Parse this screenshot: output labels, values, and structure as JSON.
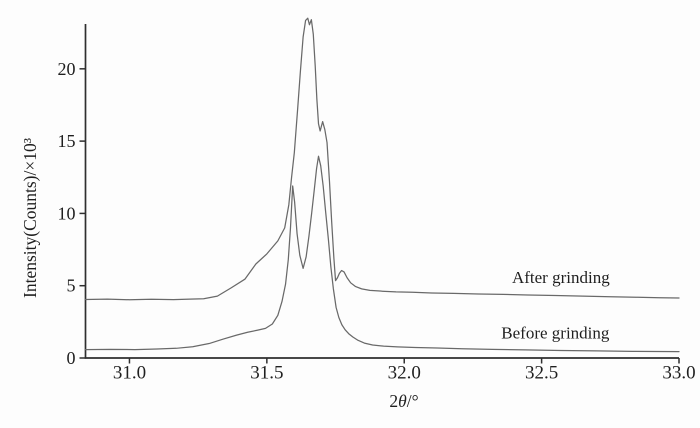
{
  "chart_data": {
    "type": "line",
    "title": "",
    "xlabel": "2θ/°",
    "ylabel": "Intensity(Counts)/×10³",
    "xlim": [
      30.84,
      33.0
    ],
    "ylim": [
      0,
      23.1
    ],
    "grid": false,
    "legend_position": "in-plot text labels",
    "x_ticks": [
      {
        "v": 31.0,
        "label": "31.0"
      },
      {
        "v": 31.5,
        "label": "31.5"
      },
      {
        "v": 32.0,
        "label": "32.0"
      },
      {
        "v": 32.5,
        "label": "32.5"
      },
      {
        "v": 33.0,
        "label": "33.0"
      }
    ],
    "y_ticks": [
      {
        "v": 0,
        "label": "0"
      },
      {
        "v": 5,
        "label": "5"
      },
      {
        "v": 10,
        "label": "10"
      },
      {
        "v": 15,
        "label": "15"
      },
      {
        "v": 20,
        "label": "20"
      }
    ],
    "series": [
      {
        "name": "After grinding",
        "points": [
          [
            30.84,
            4.05
          ],
          [
            30.92,
            4.07
          ],
          [
            31.0,
            4.03
          ],
          [
            31.08,
            4.06
          ],
          [
            31.16,
            4.04
          ],
          [
            31.22,
            4.07
          ],
          [
            31.27,
            4.1
          ],
          [
            31.32,
            4.28
          ],
          [
            31.37,
            4.85
          ],
          [
            31.42,
            5.45
          ],
          [
            31.46,
            6.5
          ],
          [
            31.5,
            7.2
          ],
          [
            31.54,
            8.1
          ],
          [
            31.565,
            9.0
          ],
          [
            31.58,
            10.6
          ],
          [
            31.59,
            12.5
          ],
          [
            31.6,
            14.2
          ],
          [
            31.612,
            17.2
          ],
          [
            31.622,
            19.8
          ],
          [
            31.632,
            22.2
          ],
          [
            31.641,
            23.35
          ],
          [
            31.649,
            23.5
          ],
          [
            31.655,
            23.05
          ],
          [
            31.662,
            23.4
          ],
          [
            31.669,
            22.4
          ],
          [
            31.676,
            20.2
          ],
          [
            31.682,
            17.9
          ],
          [
            31.688,
            16.2
          ],
          [
            31.694,
            15.7
          ],
          [
            31.703,
            16.35
          ],
          [
            31.711,
            15.8
          ],
          [
            31.719,
            14.9
          ],
          [
            31.728,
            12.2
          ],
          [
            31.736,
            9.4
          ],
          [
            31.744,
            6.9
          ],
          [
            31.75,
            5.35
          ],
          [
            31.757,
            5.55
          ],
          [
            31.764,
            5.85
          ],
          [
            31.772,
            6.05
          ],
          [
            31.781,
            5.95
          ],
          [
            31.792,
            5.55
          ],
          [
            31.805,
            5.2
          ],
          [
            31.822,
            4.95
          ],
          [
            31.845,
            4.78
          ],
          [
            31.875,
            4.68
          ],
          [
            31.92,
            4.62
          ],
          [
            31.97,
            4.57
          ],
          [
            32.03,
            4.55
          ],
          [
            32.1,
            4.5
          ],
          [
            32.18,
            4.47
          ],
          [
            32.27,
            4.43
          ],
          [
            32.36,
            4.4
          ],
          [
            32.45,
            4.36
          ],
          [
            32.55,
            4.32
          ],
          [
            32.65,
            4.28
          ],
          [
            32.75,
            4.24
          ],
          [
            32.85,
            4.2
          ],
          [
            32.93,
            4.17
          ],
          [
            33.0,
            4.15
          ]
        ]
      },
      {
        "name": "Before grinding",
        "points": [
          [
            30.84,
            0.58
          ],
          [
            30.93,
            0.6
          ],
          [
            31.02,
            0.58
          ],
          [
            31.1,
            0.62
          ],
          [
            31.17,
            0.67
          ],
          [
            31.23,
            0.78
          ],
          [
            31.29,
            1.0
          ],
          [
            31.34,
            1.3
          ],
          [
            31.39,
            1.58
          ],
          [
            31.43,
            1.78
          ],
          [
            31.465,
            1.92
          ],
          [
            31.495,
            2.05
          ],
          [
            31.52,
            2.35
          ],
          [
            31.54,
            2.95
          ],
          [
            31.555,
            3.9
          ],
          [
            31.568,
            5.1
          ],
          [
            31.578,
            6.8
          ],
          [
            31.586,
            9.0
          ],
          [
            31.594,
            11.9
          ],
          [
            31.601,
            10.8
          ],
          [
            31.61,
            8.6
          ],
          [
            31.62,
            7.1
          ],
          [
            31.632,
            6.2
          ],
          [
            31.643,
            7.0
          ],
          [
            31.653,
            8.4
          ],
          [
            31.663,
            10.0
          ],
          [
            31.673,
            11.7
          ],
          [
            31.681,
            13.1
          ],
          [
            31.688,
            13.95
          ],
          [
            31.696,
            13.3
          ],
          [
            31.705,
            11.9
          ],
          [
            31.714,
            10.1
          ],
          [
            31.724,
            8.2
          ],
          [
            31.733,
            6.3
          ],
          [
            31.742,
            4.8
          ],
          [
            31.752,
            3.5
          ],
          [
            31.762,
            2.8
          ],
          [
            31.773,
            2.3
          ],
          [
            31.785,
            1.95
          ],
          [
            31.798,
            1.68
          ],
          [
            31.813,
            1.45
          ],
          [
            31.832,
            1.22
          ],
          [
            31.855,
            1.03
          ],
          [
            31.885,
            0.9
          ],
          [
            31.925,
            0.82
          ],
          [
            31.975,
            0.77
          ],
          [
            32.04,
            0.73
          ],
          [
            32.12,
            0.69
          ],
          [
            32.21,
            0.64
          ],
          [
            32.32,
            0.6
          ],
          [
            32.44,
            0.56
          ],
          [
            32.57,
            0.52
          ],
          [
            32.7,
            0.49
          ],
          [
            32.83,
            0.46
          ],
          [
            33.0,
            0.44
          ]
        ]
      }
    ],
    "annotations": [
      {
        "text": "After grinding",
        "x": 32.57,
        "y": 5.19
      },
      {
        "text": "Before grinding",
        "x": 32.55,
        "y": 1.35
      }
    ],
    "colors": {
      "line": "#696969",
      "axis": "#2f2f2f",
      "text": "#1f1f1f",
      "background": "#fdfdfd"
    }
  }
}
